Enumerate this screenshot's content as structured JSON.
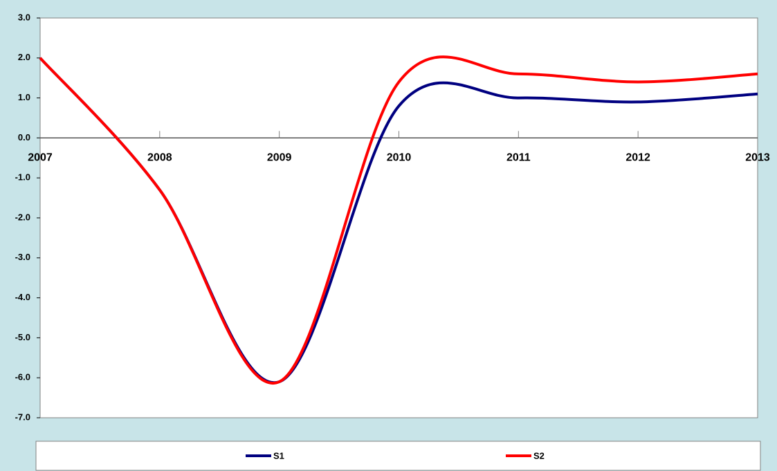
{
  "chart_data": {
    "type": "line",
    "x": [
      2007,
      2008,
      2009,
      2010,
      2011,
      2012,
      2013
    ],
    "series": [
      {
        "name": "S1",
        "color": "#000080",
        "values": [
          2.0,
          -1.3,
          -6.1,
          0.8,
          1.0,
          0.9,
          1.1
        ]
      },
      {
        "name": "S2",
        "color": "#ff0000",
        "values": [
          2.0,
          -1.3,
          -6.1,
          1.4,
          1.6,
          1.4,
          1.6
        ]
      }
    ],
    "xlim": [
      2007,
      2013
    ],
    "xticks": [
      2007,
      2008,
      2009,
      2010,
      2011,
      2012,
      2013
    ],
    "ylim": [
      -7,
      3
    ],
    "yticks": [
      {
        "value": 3,
        "label": "3.0"
      },
      {
        "value": 2,
        "label": "2.0"
      },
      {
        "value": 1,
        "label": "1.0"
      },
      {
        "value": 0,
        "label": "0.0"
      },
      {
        "value": -1,
        "label": "-1.0"
      },
      {
        "value": -2,
        "label": "-2.0"
      },
      {
        "value": -3,
        "label": "-3.0"
      },
      {
        "value": -4,
        "label": "-4.0"
      },
      {
        "value": -5,
        "label": "-5.0"
      },
      {
        "value": -6,
        "label": "-6.0"
      },
      {
        "value": -7,
        "label": "-7.0"
      }
    ],
    "smooth": true,
    "legend": "bottom"
  }
}
